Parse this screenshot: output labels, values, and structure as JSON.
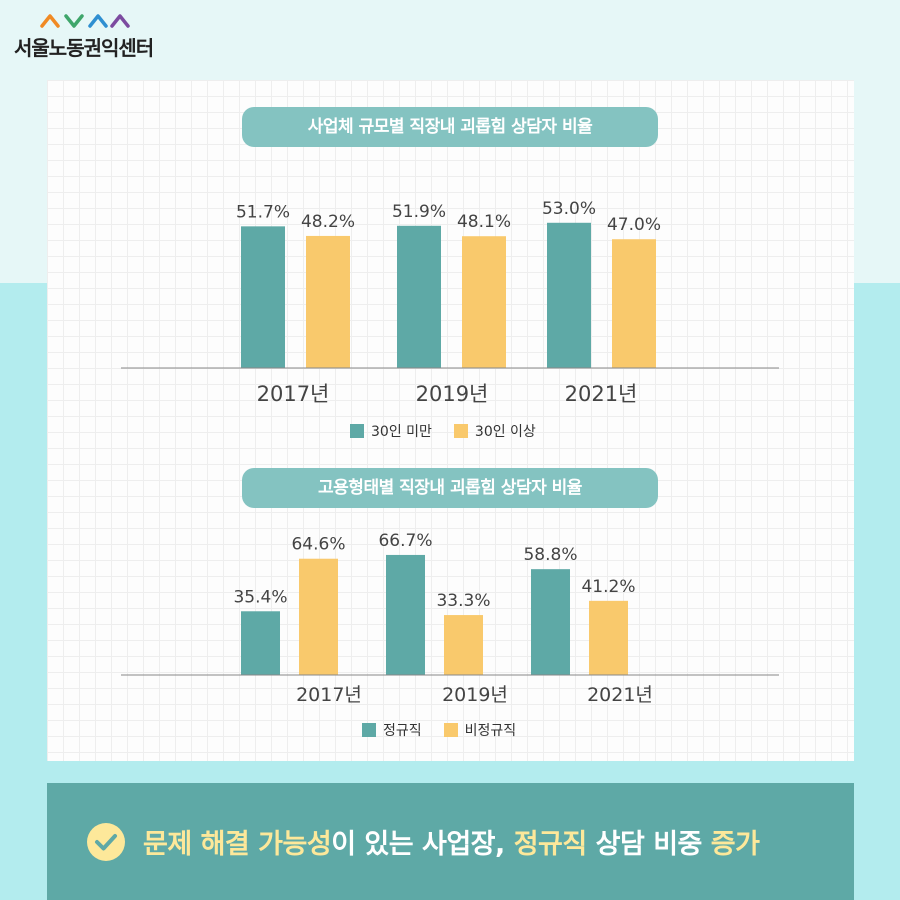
{
  "logo": {
    "text": "서울노동권익센터"
  },
  "colors": {
    "teal": "#5ea9a6",
    "yellow": "#f9c96c",
    "pill": "#84c3c1",
    "highlight": "#fde89a"
  },
  "chart_data": [
    {
      "type": "bar",
      "title": "사업체 규모별 직장내 괴롭힘 상담자 비율",
      "categories": [
        "2017년",
        "2019년",
        "2021년"
      ],
      "series": [
        {
          "name": "30인 미만",
          "values": [
            51.7,
            51.9,
            53.0
          ],
          "labels": [
            "51.7%",
            "51.9%",
            "53.0%"
          ],
          "color": "#5ea9a6"
        },
        {
          "name": "30인 이상",
          "values": [
            48.2,
            48.1,
            47.0
          ],
          "labels": [
            "48.2%",
            "48.1%",
            "47.0%"
          ],
          "color": "#f9c96c"
        }
      ],
      "xlabel": "",
      "ylabel": "",
      "ylim": [
        0,
        60
      ],
      "legend": "bottom",
      "grid": false
    },
    {
      "type": "bar",
      "title": "고용형태별 직장내 괴롭힘 상담자 비율",
      "categories": [
        "2017년",
        "2019년",
        "2021년"
      ],
      "series": [
        {
          "name": "정규직",
          "values": [
            35.4,
            66.7,
            58.8
          ],
          "labels": [
            "35.4%",
            "66.7%",
            "58.8%"
          ],
          "color": "#5ea9a6"
        },
        {
          "name": "비정규직",
          "values": [
            64.6,
            33.3,
            41.2
          ],
          "labels": [
            "64.6%",
            "33.3%",
            "41.2%"
          ],
          "color": "#f9c96c"
        }
      ],
      "xlabel": "",
      "ylabel": "",
      "ylim": [
        0,
        80
      ],
      "legend": "bottom",
      "grid": false
    }
  ],
  "banner": {
    "icon": "check-circle-icon",
    "parts": [
      {
        "text": "문제 해결 가능성",
        "highlight": true
      },
      {
        "text": "이 있는 사업장, ",
        "highlight": false
      },
      {
        "text": "정규직",
        "highlight": true
      },
      {
        "text": " 상담 비중 ",
        "highlight": false
      },
      {
        "text": "증가",
        "highlight": true
      }
    ]
  }
}
